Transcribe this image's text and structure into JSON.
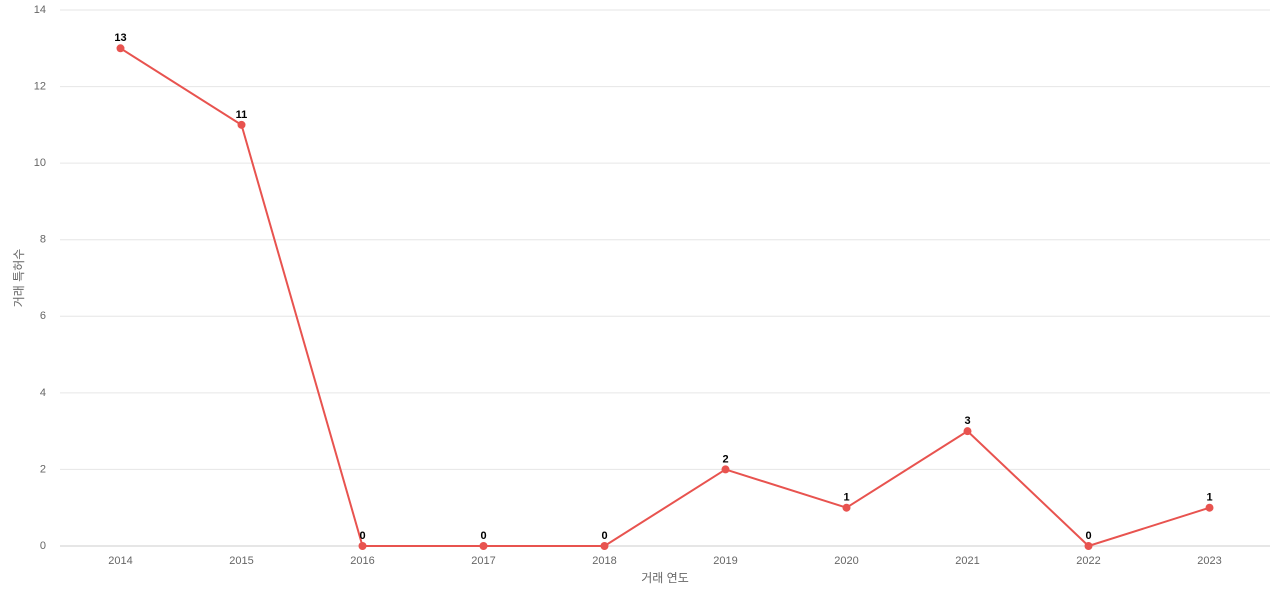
{
  "chart_data": {
    "type": "line",
    "categories": [
      "2014",
      "2015",
      "2016",
      "2017",
      "2018",
      "2019",
      "2020",
      "2021",
      "2022",
      "2023"
    ],
    "series": [
      {
        "name": "거래 특허수",
        "color": "#e8534f",
        "values": [
          13,
          11,
          0,
          0,
          0,
          2,
          1,
          3,
          0,
          1
        ]
      }
    ],
    "x_label": "거래 연도",
    "y_label": "거래 특허수",
    "ylim": [
      0,
      14
    ],
    "yticks": [
      0,
      2,
      4,
      6,
      8,
      10,
      12,
      14
    ],
    "grid": true
  }
}
